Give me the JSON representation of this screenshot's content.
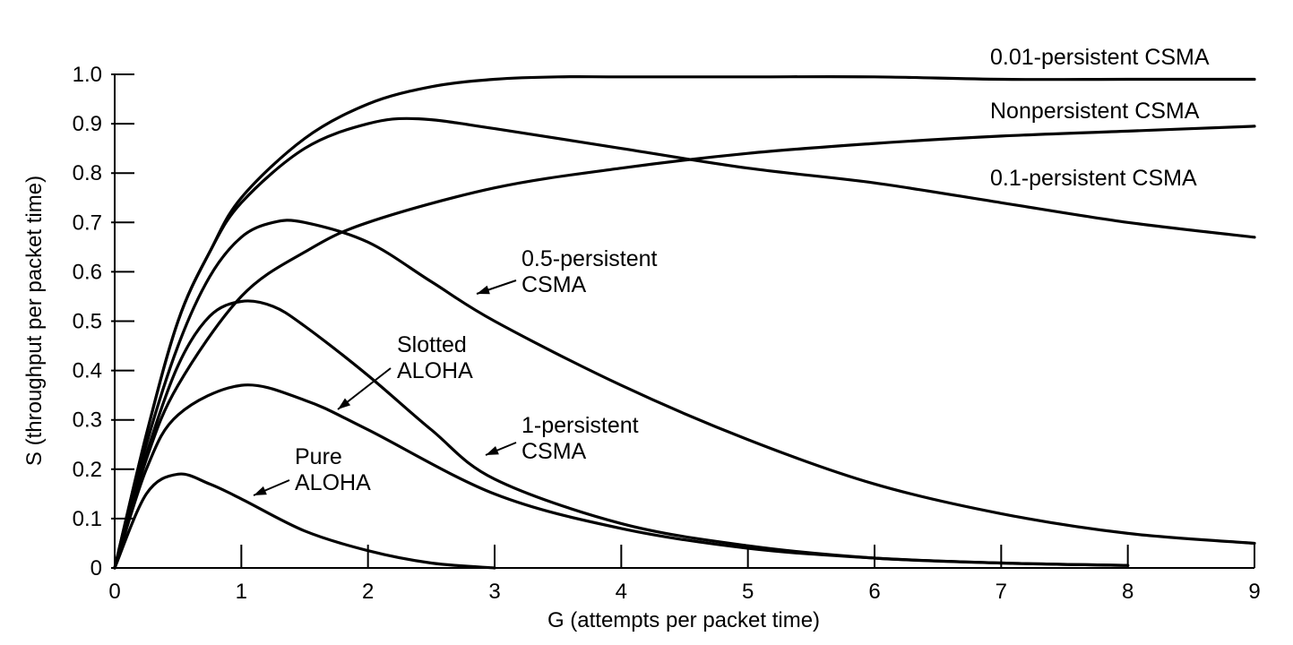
{
  "chart_data": {
    "type": "line",
    "title": "",
    "xlabel": "G (attempts per packet time)",
    "ylabel": "S (throughput per packet time)",
    "xlim": [
      0,
      9
    ],
    "ylim": [
      0,
      1.0
    ],
    "xticks": [
      0,
      1,
      2,
      3,
      4,
      5,
      6,
      7,
      8,
      9
    ],
    "yticks": [
      0,
      0.1,
      0.2,
      0.3,
      0.4,
      0.5,
      0.6,
      0.7,
      0.8,
      0.9,
      1.0
    ],
    "xtick_labels": [
      "0",
      "1",
      "2",
      "3",
      "4",
      "5",
      "6",
      "7",
      "8",
      "9"
    ],
    "ytick_labels": [
      "0",
      "0.1",
      "0.2",
      "0.3",
      "0.4",
      "0.5",
      "0.6",
      "0.7",
      "0.8",
      "0.9",
      "1.0"
    ],
    "grid": false,
    "legend": "none",
    "line_color": "#000000",
    "series": [
      {
        "key": "pure-aloha",
        "label_lines": [
          "Pure",
          "ALOHA"
        ],
        "x": [
          0,
          0.25,
          0.5,
          0.75,
          1,
          1.5,
          2,
          2.5,
          3
        ],
        "y": [
          0,
          0.15,
          0.19,
          0.17,
          0.14,
          0.075,
          0.035,
          0.01,
          0.0
        ]
      },
      {
        "key": "slotted-aloha",
        "label_lines": [
          "Slotted",
          "ALOHA"
        ],
        "x": [
          0,
          0.25,
          0.5,
          1,
          1.5,
          2,
          3,
          4,
          5,
          6,
          7,
          8
        ],
        "y": [
          0,
          0.2,
          0.31,
          0.37,
          0.34,
          0.28,
          0.15,
          0.08,
          0.04,
          0.02,
          0.01,
          0.005
        ]
      },
      {
        "key": "one-persistent-csma",
        "label_lines": [
          "1-persistent",
          "CSMA"
        ],
        "x": [
          0,
          0.25,
          0.5,
          0.75,
          1,
          1.25,
          1.5,
          2,
          2.5,
          3,
          4,
          5,
          6,
          7,
          8
        ],
        "y": [
          0,
          0.23,
          0.41,
          0.51,
          0.54,
          0.53,
          0.49,
          0.39,
          0.28,
          0.18,
          0.09,
          0.045,
          0.02,
          0.01,
          0.005
        ]
      },
      {
        "key": "half-persistent-csma",
        "label_lines": [
          "0.5-persistent",
          "CSMA"
        ],
        "x": [
          0,
          0.25,
          0.5,
          0.75,
          1,
          1.25,
          1.5,
          2,
          2.5,
          3,
          4,
          5,
          6,
          7,
          8,
          9
        ],
        "y": [
          0,
          0.25,
          0.45,
          0.59,
          0.67,
          0.7,
          0.7,
          0.66,
          0.58,
          0.5,
          0.37,
          0.26,
          0.17,
          0.11,
          0.07,
          0.05
        ]
      },
      {
        "key": "nonpersistent-csma",
        "label_lines": [
          "Nonpersistent CSMA"
        ],
        "x": [
          0,
          0.25,
          0.5,
          1,
          1.5,
          2,
          3,
          4,
          5,
          6,
          7,
          8,
          9
        ],
        "y": [
          0,
          0.22,
          0.37,
          0.55,
          0.64,
          0.7,
          0.77,
          0.81,
          0.84,
          0.86,
          0.875,
          0.885,
          0.895
        ]
      },
      {
        "key": "point-one-persistent-csma",
        "label_lines": [
          "0.1-persistent CSMA"
        ],
        "x": [
          0,
          0.25,
          0.5,
          0.75,
          1,
          1.5,
          2,
          2.4,
          3,
          4,
          5,
          6,
          7,
          8,
          9
        ],
        "y": [
          0,
          0.27,
          0.5,
          0.64,
          0.74,
          0.85,
          0.9,
          0.91,
          0.89,
          0.85,
          0.81,
          0.78,
          0.74,
          0.7,
          0.67
        ]
      },
      {
        "key": "point-zero-one-persistent-csma",
        "label_lines": [
          "0.01-persistent CSMA"
        ],
        "x": [
          0,
          0.25,
          0.5,
          0.75,
          1,
          1.5,
          2,
          2.5,
          3,
          3.5,
          4,
          5,
          6,
          7,
          8,
          9
        ],
        "y": [
          0,
          0.27,
          0.5,
          0.64,
          0.75,
          0.87,
          0.94,
          0.975,
          0.99,
          0.995,
          0.995,
          0.995,
          0.995,
          0.99,
          0.99,
          0.99
        ]
      }
    ]
  }
}
